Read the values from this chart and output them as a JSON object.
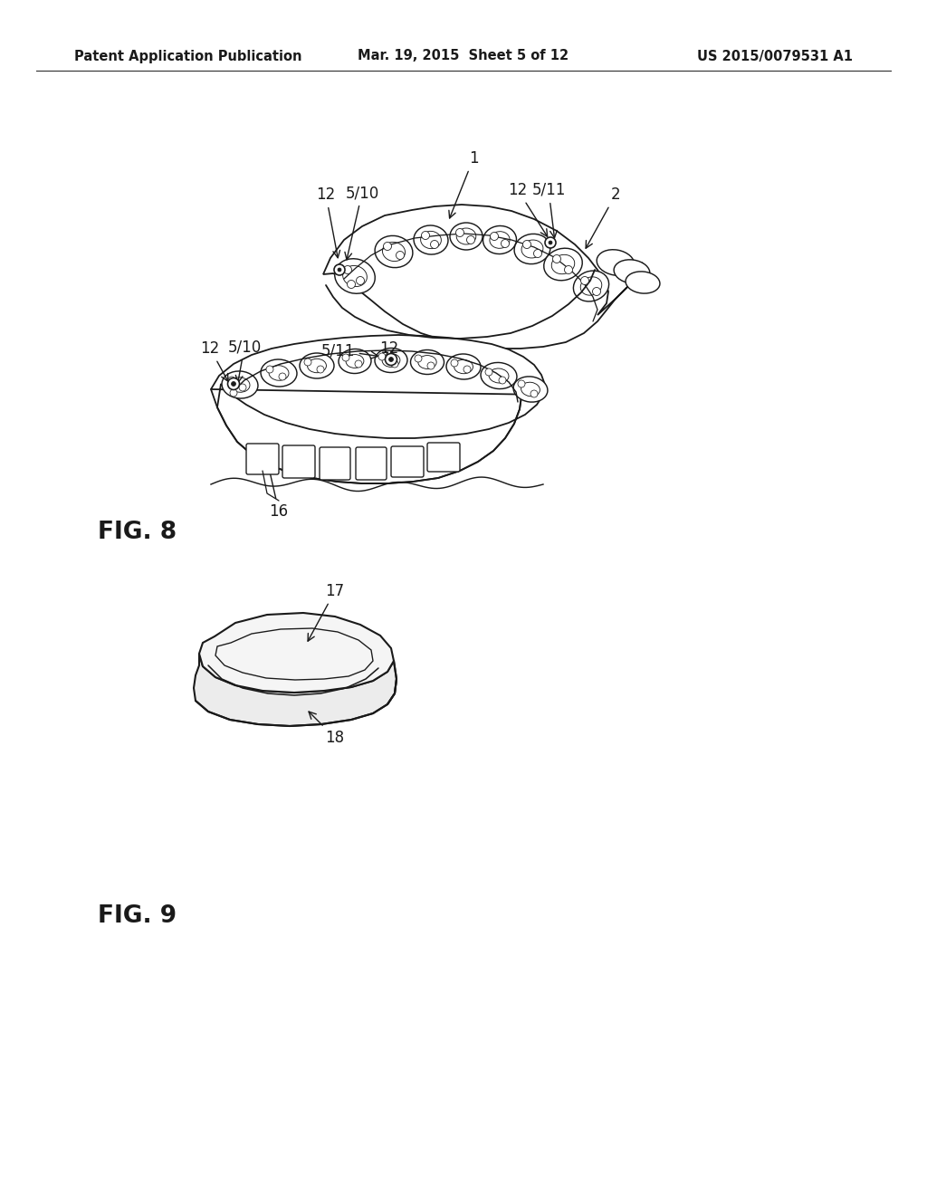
{
  "background_color": "#ffffff",
  "header": {
    "left_text": "Patent Application Publication",
    "center_text": "Mar. 19, 2015  Sheet 5 of 12",
    "right_text": "US 2015/0079531 A1"
  },
  "fig8_label": "FIG. 8",
  "fig9_label": "FIG. 9",
  "line_color": "#1a1a1a",
  "text_color": "#1a1a1a"
}
